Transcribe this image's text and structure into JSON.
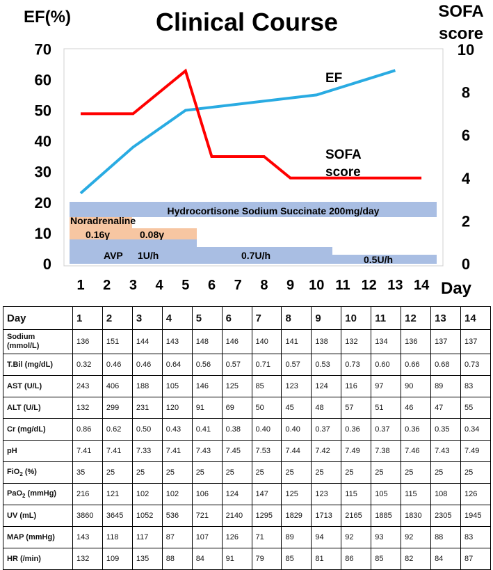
{
  "chart_data": {
    "type": "line",
    "title": "Clinical Course",
    "ylabel_left": "EF(%)",
    "ylabel_right_line1": "SOFA",
    "ylabel_right_line2": "score",
    "xlabel": "Day",
    "x": [
      1,
      2,
      3,
      4,
      5,
      6,
      7,
      8,
      9,
      10,
      11,
      12,
      13,
      14
    ],
    "left_ticks": [
      0,
      10,
      20,
      30,
      40,
      50,
      60,
      70
    ],
    "right_ticks": [
      0,
      2,
      4,
      6,
      8,
      10
    ],
    "ylim_left": [
      0,
      70
    ],
    "ylim_right": [
      0,
      10
    ],
    "series": [
      {
        "name": "EF",
        "axis": "left",
        "color": "#29ABE2",
        "x": [
          1,
          3,
          5,
          10,
          13
        ],
        "values": [
          23,
          38,
          50,
          55,
          63
        ]
      },
      {
        "name": "SOFA score",
        "axis": "right",
        "color": "#FF0000",
        "x": [
          1,
          3,
          5,
          6,
          8,
          9,
          14
        ],
        "values": [
          7,
          7,
          9,
          5,
          5,
          4,
          4
        ]
      }
    ],
    "labels": {
      "ef": "EF",
      "sofa_line1": "SOFA",
      "sofa_line2": "score"
    },
    "drug_bars": [
      {
        "name": "hydrocortisone",
        "x_start": 0.5,
        "x_end": 14.5,
        "y_top": 20,
        "y_bottom": 15,
        "color": "#A9BEE3",
        "text": "Hydrocortisone Sodium Succinate 200mg/day"
      },
      {
        "name": "noradrenaline",
        "x_start": 0.5,
        "x_end": 5.5,
        "y_top": 12,
        "y_bottom": 8,
        "color": "#F7C6A2",
        "text": "Noradrenaline"
      },
      {
        "name": "avp",
        "x_start": 0.5,
        "x_end": 14.5,
        "y_top": 8,
        "y_bottom": 0,
        "color": "#A9BEE3",
        "text": "AVP"
      }
    ],
    "dose_labels": {
      "nor1": "0.16γ",
      "nor2": "0.08γ",
      "avp1": "1U/h",
      "avp2": "0.7U/h",
      "avp3": "0.5U/h"
    }
  },
  "table": {
    "header_label": "Day",
    "days": [
      "1",
      "2",
      "3",
      "4",
      "5",
      "6",
      "7",
      "8",
      "9",
      "10",
      "11",
      "12",
      "13",
      "14"
    ],
    "rows": [
      {
        "label": "Sodium (mmol/L)",
        "values": [
          "136",
          "151",
          "144",
          "143",
          "148",
          "146",
          "140",
          "141",
          "138",
          "132",
          "134",
          "136",
          "137",
          "137"
        ]
      },
      {
        "label": "T.Bil (mg/dL)",
        "values": [
          "0.32",
          "0.46",
          "0.46",
          "0.64",
          "0.56",
          "0.57",
          "0.71",
          "0.57",
          "0.53",
          "0.73",
          "0.60",
          "0.66",
          "0.68",
          "0.73"
        ]
      },
      {
        "label": "AST (U/L)",
        "values": [
          "243",
          "406",
          "188",
          "105",
          "146",
          "125",
          "85",
          "123",
          "124",
          "116",
          "97",
          "90",
          "89",
          "83"
        ]
      },
      {
        "label": "ALT (U/L)",
        "values": [
          "132",
          "299",
          "231",
          "120",
          "91",
          "69",
          "50",
          "45",
          "48",
          "57",
          "51",
          "46",
          "47",
          "55"
        ]
      },
      {
        "label": "Cr (mg/dL)",
        "values": [
          "0.86",
          "0.62",
          "0.50",
          "0.43",
          "0.41",
          "0.38",
          "0.40",
          "0.40",
          "0.37",
          "0.36",
          "0.37",
          "0.36",
          "0.35",
          "0.34"
        ]
      },
      {
        "label": "pH",
        "values": [
          "7.41",
          "7.41",
          "7.33",
          "7.41",
          "7.43",
          "7.45",
          "7.53",
          "7.44",
          "7.42",
          "7.49",
          "7.38",
          "7.46",
          "7.43",
          "7.49"
        ]
      },
      {
        "label": "FiO2 (%)",
        "values": [
          "35",
          "25",
          "25",
          "25",
          "25",
          "25",
          "25",
          "25",
          "25",
          "25",
          "25",
          "25",
          "25",
          "25"
        ]
      },
      {
        "label": "PaO2 (mmHg)",
        "values": [
          "216",
          "121",
          "102",
          "102",
          "106",
          "124",
          "147",
          "125",
          "123",
          "115",
          "105",
          "115",
          "108",
          "126"
        ]
      },
      {
        "label": "UV (mL)",
        "values": [
          "3860",
          "3645",
          "1052",
          "536",
          "721",
          "2140",
          "1295",
          "1829",
          "1713",
          "2165",
          "1885",
          "1830",
          "2305",
          "1945"
        ]
      },
      {
        "label": "MAP (mmHg)",
        "values": [
          "143",
          "118",
          "117",
          "87",
          "107",
          "126",
          "71",
          "89",
          "94",
          "92",
          "93",
          "92",
          "88",
          "83"
        ]
      },
      {
        "label": "HR (/min)",
        "values": [
          "132",
          "109",
          "135",
          "88",
          "84",
          "91",
          "79",
          "85",
          "81",
          "86",
          "85",
          "82",
          "84",
          "87"
        ]
      }
    ]
  }
}
